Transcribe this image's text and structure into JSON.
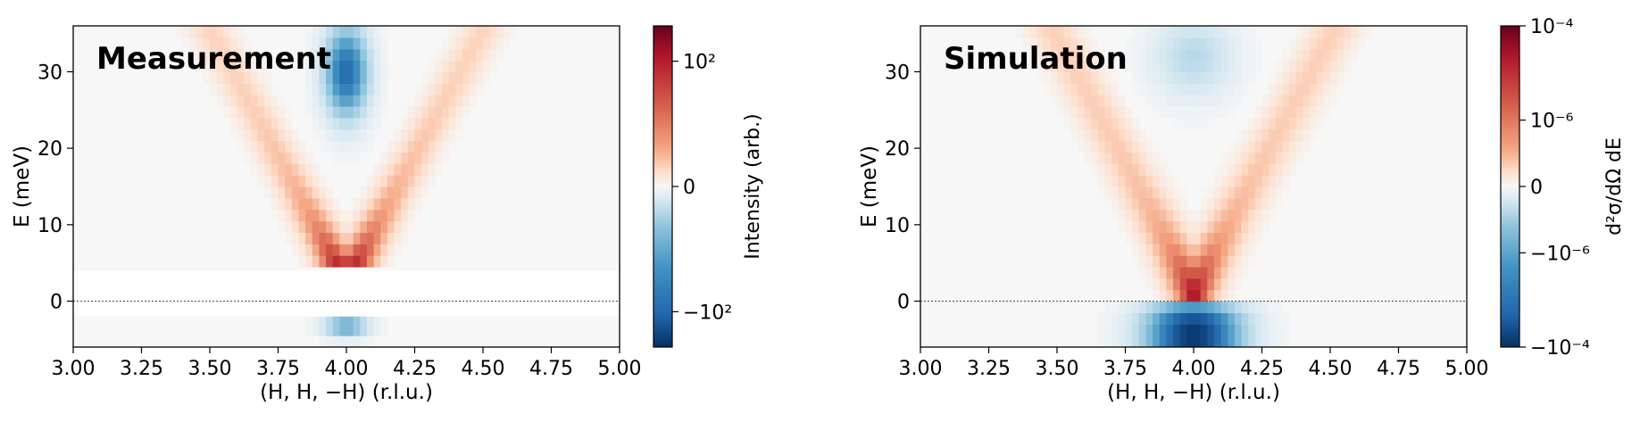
{
  "chart_data": [
    {
      "type": "heatmap",
      "title": "Measurement",
      "xlabel": "(H, H, −H) (r.l.u.)",
      "ylabel": "E (meV)",
      "xlim": [
        3.0,
        5.0
      ],
      "ylim": [
        -6,
        36
      ],
      "x_ticks": [
        "3.00",
        "3.25",
        "3.50",
        "3.75",
        "4.00",
        "4.25",
        "4.50",
        "4.75",
        "5.00"
      ],
      "y_ticks": [
        "0",
        "10",
        "20",
        "30"
      ],
      "reference_line_y": 0,
      "colorbar": {
        "label": "Intensity (arb.)",
        "scale": "symlog",
        "ticks": [
          "10²",
          "0",
          "−10²"
        ],
        "tick_values": [
          100,
          0,
          -100
        ],
        "colormap": [
          "#67001f",
          "#b2182b",
          "#d6604d",
          "#f4a582",
          "#fddbc7",
          "#f7f7f7",
          "#d1e5f0",
          "#92c5de",
          "#4393c3",
          "#2166ac",
          "#053061"
        ]
      },
      "features": [
        {
          "name": "v-dispersion",
          "sign": "positive",
          "vertex": [
            4.0,
            3
          ],
          "arm_slope_meV_per_rlu": 65
        },
        {
          "name": "upper-negative-region",
          "sign": "negative",
          "center_H": 4.0,
          "E_range": [
            24,
            36
          ]
        },
        {
          "name": "lower-negative-strip",
          "sign": "negative",
          "center_H": 4.0,
          "E": -3
        }
      ],
      "masked_E_range": [
        -2,
        4
      ]
    },
    {
      "type": "heatmap",
      "title": "Simulation",
      "xlabel": "(H, H, −H) (r.l.u.)",
      "ylabel": "E (meV)",
      "xlim": [
        3.0,
        5.0
      ],
      "ylim": [
        -6,
        36
      ],
      "x_ticks": [
        "3.00",
        "3.25",
        "3.50",
        "3.75",
        "4.00",
        "4.25",
        "4.50",
        "4.75",
        "5.00"
      ],
      "y_ticks": [
        "0",
        "10",
        "20",
        "30"
      ],
      "reference_line_y": 0,
      "colorbar": {
        "label": "d²σ/dΩ dE",
        "scale": "symlog",
        "ticks": [
          "10⁻⁴",
          "10⁻⁶",
          "0",
          "−10⁻⁶",
          "−10⁻⁴"
        ],
        "tick_values": [
          0.0001,
          1e-06,
          0,
          -1e-06,
          -0.0001
        ],
        "colormap": [
          "#67001f",
          "#b2182b",
          "#d6604d",
          "#f4a582",
          "#fddbc7",
          "#f7f7f7",
          "#d1e5f0",
          "#92c5de",
          "#4393c3",
          "#2166ac",
          "#053061"
        ]
      },
      "features": [
        {
          "name": "v-dispersion",
          "sign": "positive",
          "vertex": [
            4.0,
            2
          ],
          "arm_slope_meV_per_rlu": 65
        },
        {
          "name": "upper-negative-region",
          "sign": "negative",
          "center_H": 4.0,
          "E_range": [
            26,
            36
          ]
        },
        {
          "name": "lower-negative-region",
          "sign": "negative",
          "center_H": 4.0,
          "E_range": [
            -6,
            0
          ]
        }
      ]
    }
  ]
}
